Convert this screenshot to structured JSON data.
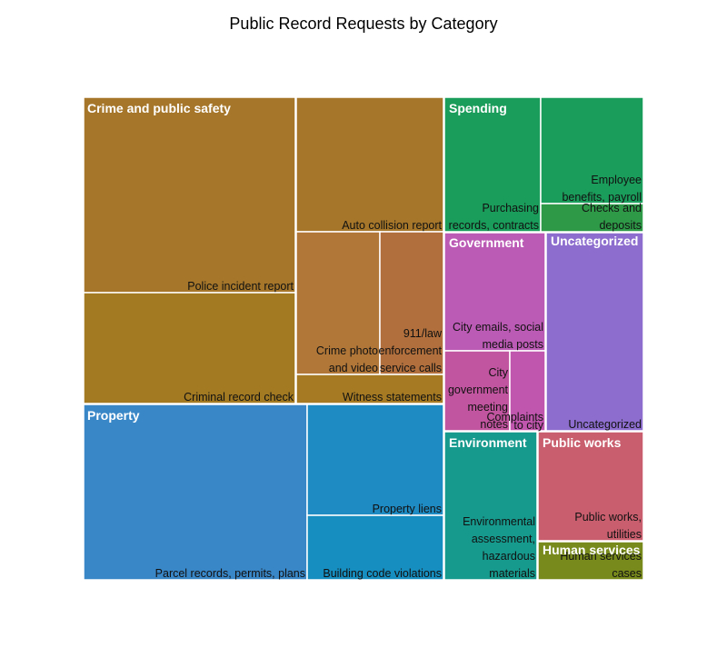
{
  "chart_data": {
    "type": "treemap",
    "title": "Public Record Requests by Category",
    "groups": [
      {
        "name": "Crime and public safety",
        "color": "#A6772A",
        "items": [
          {
            "label": [
              "Police incident report"
            ],
            "color": "#A6772A"
          },
          {
            "label": [
              "Criminal record check"
            ],
            "color": "#A37A22"
          },
          {
            "label": [
              "Auto collision report"
            ],
            "color": "#A6772A"
          },
          {
            "label": [
              "Crime photo",
              "and video"
            ],
            "color": "#B17738"
          },
          {
            "label": [
              "911/law",
              "enforcement",
              "service calls"
            ],
            "color": "#B06F3C"
          },
          {
            "label": [
              "Witness statements"
            ],
            "color": "#A67A23"
          }
        ]
      },
      {
        "name": "Property",
        "color": "#3A87C8",
        "items": [
          {
            "label": [
              "Parcel records, permits, plans"
            ],
            "color": "#3A87C8"
          },
          {
            "label": [
              "Property liens"
            ],
            "color": "#1E8BC3"
          },
          {
            "label": [
              "Building code violations"
            ],
            "color": "#168EBF"
          }
        ]
      },
      {
        "name": "Spending",
        "color": "#1A9C5A",
        "items": [
          {
            "label": [
              "Purchasing",
              "records, contracts"
            ],
            "color": "#1A9C5A"
          },
          {
            "label": [
              "Employee",
              "benefits, payroll"
            ],
            "color": "#1A9C5A"
          },
          {
            "label": [
              "Checks and",
              "deposits"
            ],
            "color": "#2E9A48"
          }
        ]
      },
      {
        "name": "Government",
        "color": "#BC5BB5",
        "items": [
          {
            "label": [
              "City emails, social",
              "media posts"
            ],
            "color": "#BC5BB5"
          },
          {
            "label": [
              "City",
              "government",
              "meeting",
              "notes"
            ],
            "color": "#C2559F"
          },
          {
            "label": [
              "Complaints",
              "to city"
            ],
            "color": "#C056AD"
          }
        ]
      },
      {
        "name": "Uncategorized",
        "color": "#8D6ECE",
        "items": [
          {
            "label": [
              "Uncategorized"
            ],
            "color": "#8D6ECE"
          }
        ]
      },
      {
        "name": "Environment",
        "color": "#169A8E",
        "items": [
          {
            "label": [
              "Environmental",
              "assessment,",
              "hazardous",
              "materials"
            ],
            "color": "#169A8E"
          }
        ]
      },
      {
        "name": "Public works",
        "color": "#C95F6E",
        "items": [
          {
            "label": [
              "Public works,",
              "utilities"
            ],
            "color": "#C95F6E"
          }
        ]
      },
      {
        "name": "Human services",
        "color": "#788A1C",
        "items": [
          {
            "label": [
              "Human services",
              "cases"
            ],
            "color": "#788A1C"
          }
        ]
      }
    ]
  }
}
